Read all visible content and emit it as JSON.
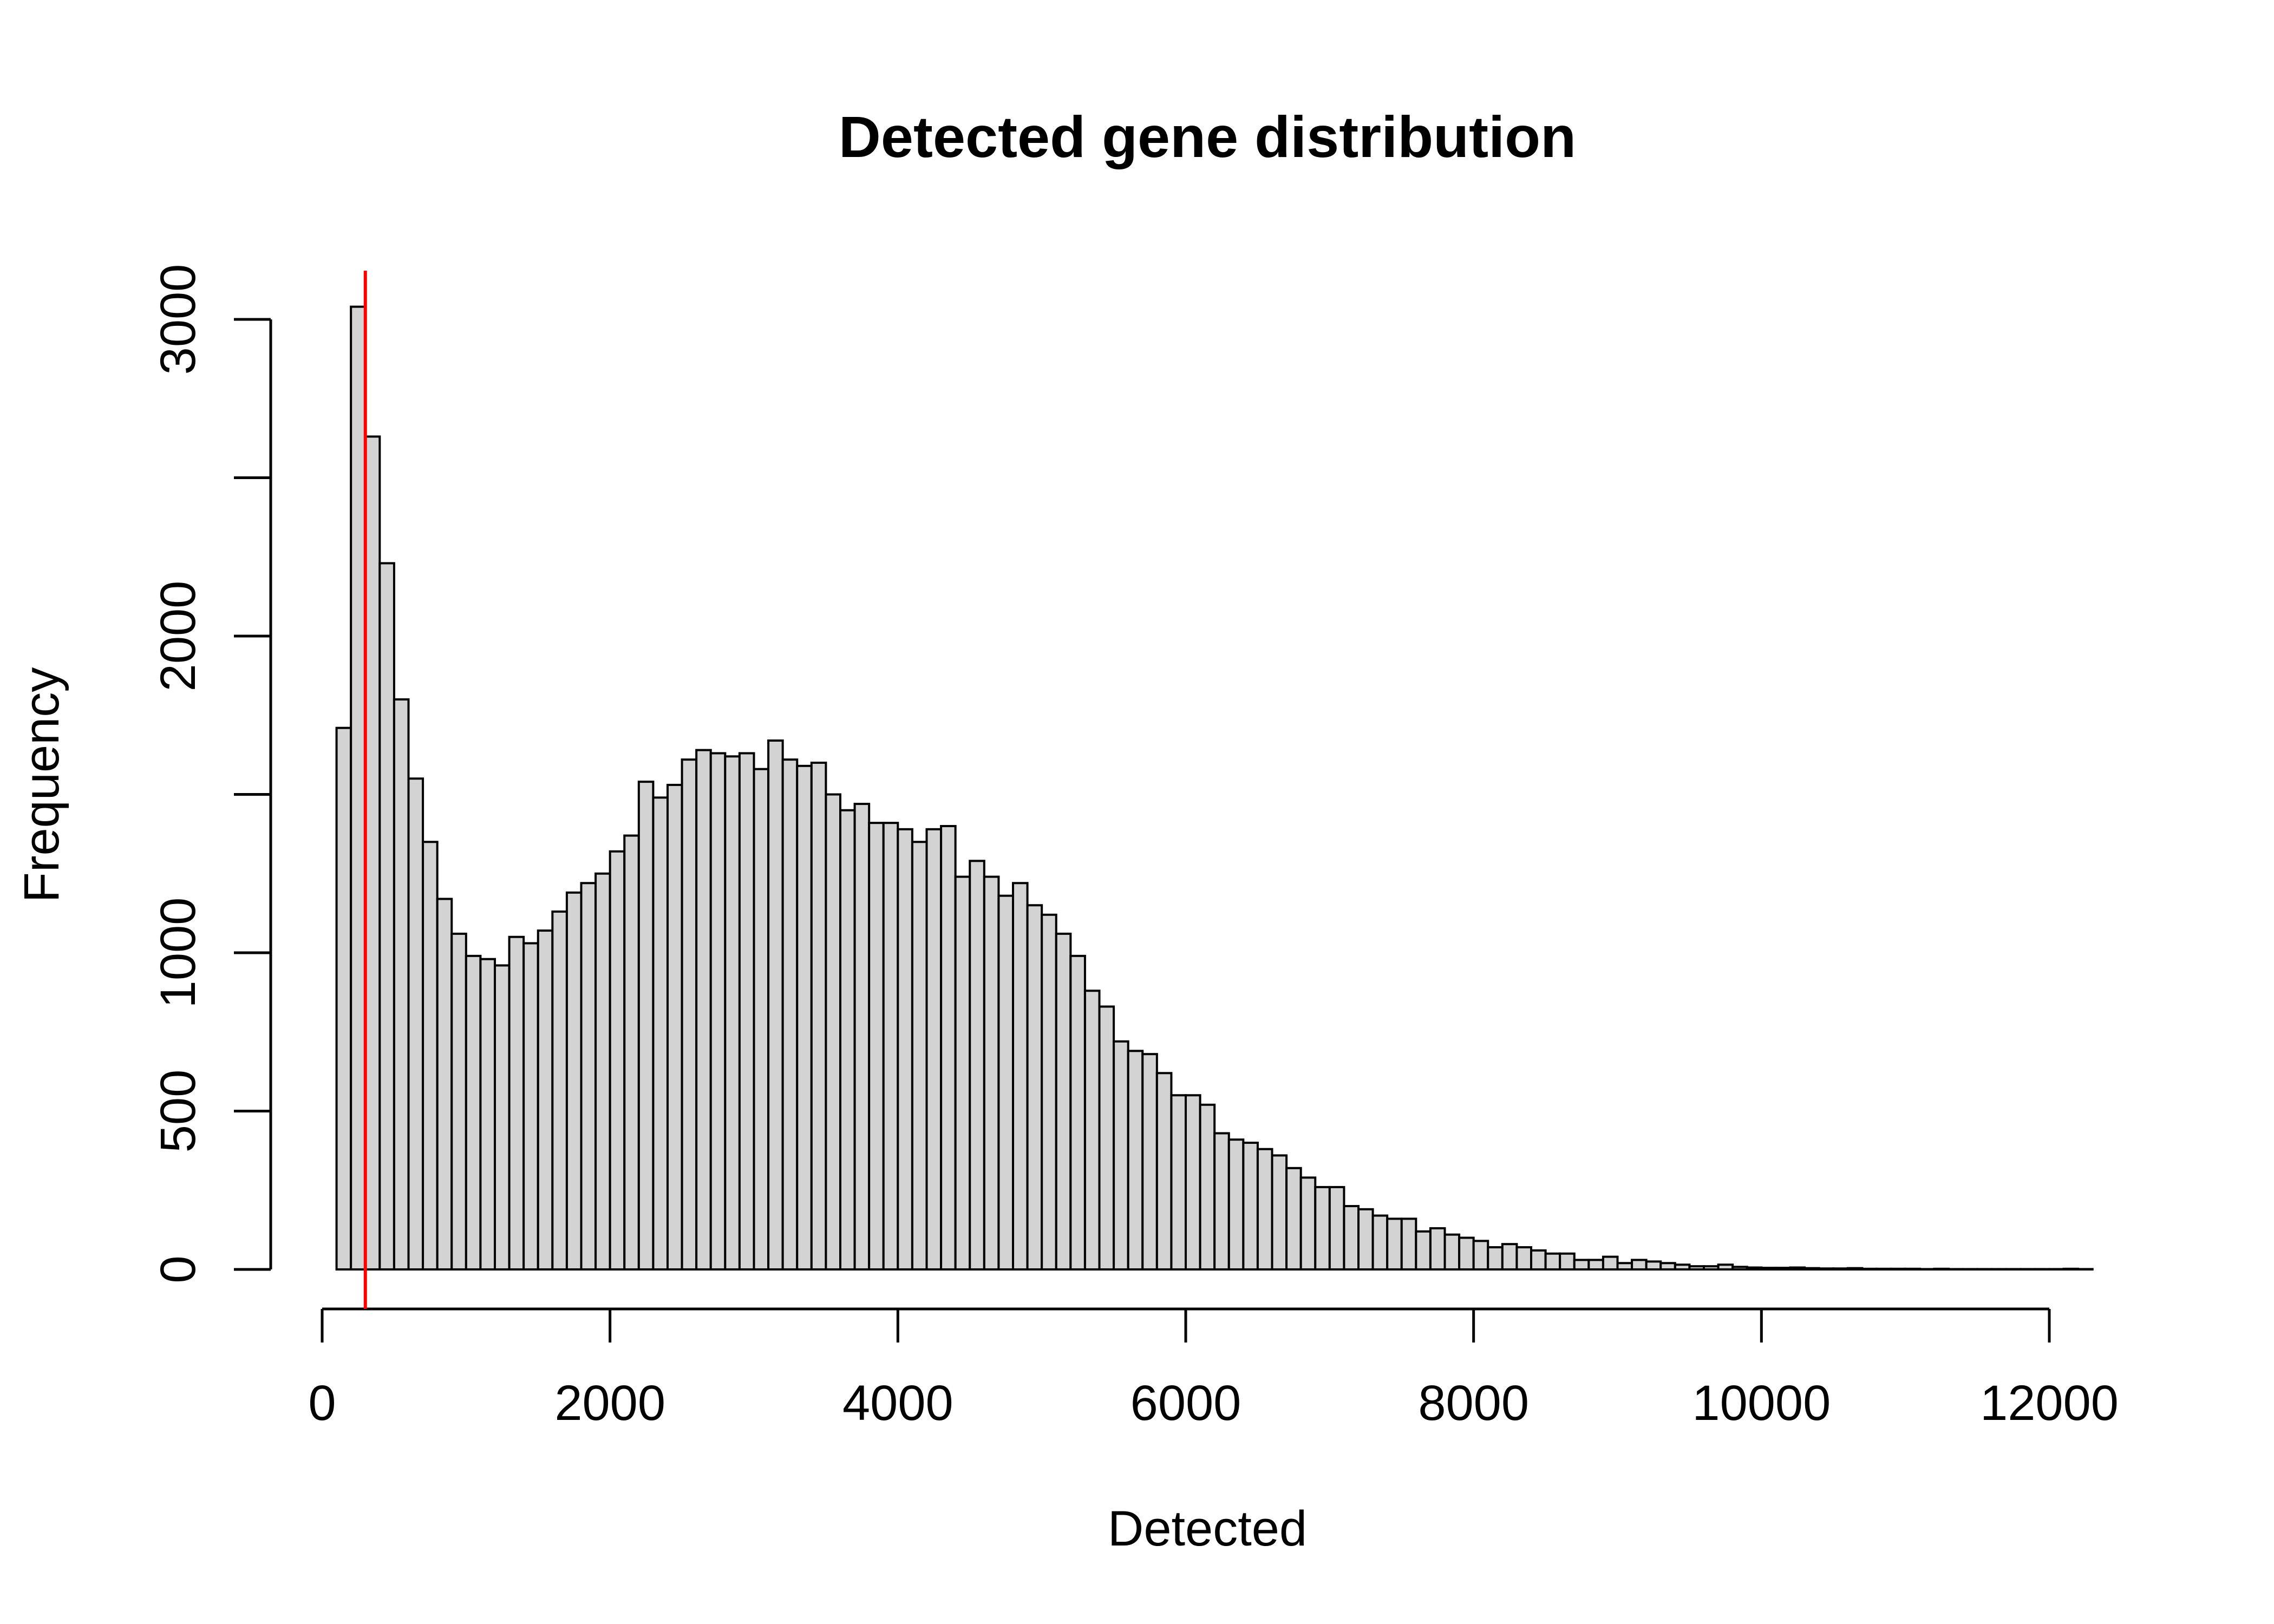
{
  "chart_data": {
    "type": "bar",
    "title": "Detected gene distribution",
    "xlabel": "Detected",
    "ylabel": "Frequency",
    "xlim": [
      0,
      12300
    ],
    "ylim": [
      0,
      3050
    ],
    "x_ticks": [
      0,
      2000,
      4000,
      6000,
      8000,
      10000,
      12000
    ],
    "x_tick_labels": [
      "0",
      "2000",
      "4000",
      "6000",
      "8000",
      "10000",
      "12000"
    ],
    "y_ticks": [
      0,
      500,
      1000,
      1500,
      2000,
      2500,
      3000
    ],
    "y_tick_labels": [
      "0",
      "500",
      "1000",
      "",
      "2000",
      "",
      "3000"
    ],
    "bin_start": 100,
    "bin_width": 100,
    "values": [
      1710,
      3040,
      2630,
      2230,
      1800,
      1550,
      1350,
      1170,
      1060,
      990,
      980,
      960,
      1050,
      1030,
      1070,
      1130,
      1190,
      1220,
      1250,
      1320,
      1370,
      1540,
      1490,
      1530,
      1610,
      1640,
      1630,
      1620,
      1630,
      1580,
      1670,
      1610,
      1590,
      1600,
      1500,
      1450,
      1470,
      1410,
      1410,
      1390,
      1350,
      1390,
      1400,
      1240,
      1290,
      1240,
      1180,
      1220,
      1150,
      1120,
      1060,
      990,
      880,
      830,
      720,
      690,
      680,
      620,
      550,
      550,
      520,
      430,
      410,
      400,
      380,
      360,
      320,
      290,
      260,
      260,
      200,
      190,
      170,
      160,
      160,
      120,
      130,
      110,
      100,
      90,
      70,
      80,
      70,
      60,
      50,
      50,
      30,
      30,
      40,
      20,
      30,
      25,
      20,
      15,
      10,
      10,
      15,
      8,
      6,
      5,
      5,
      6,
      4,
      3,
      3,
      4,
      2,
      2,
      2,
      2,
      1,
      2,
      1,
      1,
      1,
      1,
      1,
      1,
      1,
      1,
      2,
      1
    ],
    "vline": {
      "x": 300,
      "color": "#ff0000"
    },
    "bar_fill": "#d3d3d3",
    "bar_stroke": "#000000",
    "grid": false,
    "legend": "none"
  }
}
